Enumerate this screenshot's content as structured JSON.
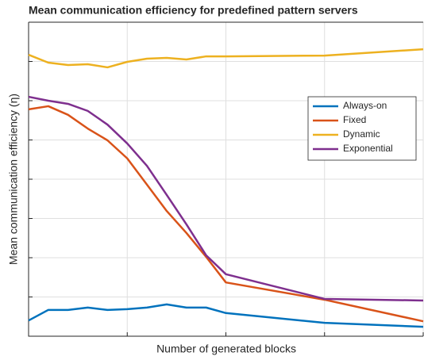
{
  "chart_data": {
    "type": "line",
    "title": "Mean communication efficiency for predefined pattern servers",
    "x_label": "Number of generated blocks",
    "y_label": "Mean communication efficiency (η)",
    "x": [
      0,
      1,
      2,
      3,
      4,
      5,
      6,
      7,
      8,
      9,
      10,
      15,
      20
    ],
    "series": [
      {
        "name": "Always-on",
        "color": "#0072BD",
        "values": [
          0.4,
          0.67,
          0.67,
          0.73,
          0.67,
          0.69,
          0.73,
          0.81,
          0.73,
          0.73,
          0.59,
          0.34,
          0.24
        ]
      },
      {
        "name": "Fixed",
        "color": "#D95319",
        "values": [
          5.78,
          5.86,
          5.64,
          5.29,
          4.99,
          4.53,
          3.86,
          3.19,
          2.63,
          2.02,
          1.37,
          0.93,
          0.38
        ]
      },
      {
        "name": "Dynamic",
        "color": "#EDB120",
        "values": [
          7.17,
          6.97,
          6.91,
          6.93,
          6.85,
          6.99,
          7.07,
          7.09,
          7.05,
          7.13,
          7.13,
          7.15,
          7.31
        ]
      },
      {
        "name": "Exponential",
        "color": "#7E2F8E",
        "values": [
          6.1,
          6.0,
          5.92,
          5.74,
          5.39,
          4.91,
          4.34,
          3.6,
          2.85,
          2.06,
          1.58,
          0.95,
          0.91
        ]
      }
    ],
    "xlim": [
      0,
      20
    ],
    "xticks": [
      0,
      5,
      10,
      15,
      20
    ],
    "ylim": [
      0,
      8
    ],
    "yticks": [
      0,
      1,
      2,
      3,
      4,
      5,
      6,
      7,
      8
    ],
    "grid": true,
    "legend": "upper right"
  }
}
